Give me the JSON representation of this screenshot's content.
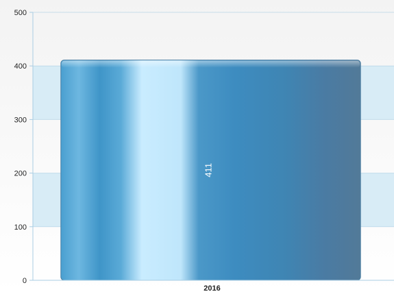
{
  "chart_data": {
    "type": "bar",
    "title": "",
    "xlabel": "",
    "ylabel": "",
    "categories": [
      "2016"
    ],
    "series": [
      {
        "values": [
          411
        ],
        "data_labels": [
          "411"
        ]
      }
    ],
    "ylim": [
      0,
      500
    ],
    "yticks": [
      0,
      100,
      200,
      300,
      400,
      500
    ],
    "grid": true,
    "alternating_bands": true,
    "legend": "none",
    "colors": {
      "bar_dark": "#2f7db5",
      "bar_light": "#c8ecff",
      "bar_edge": "#4a7ea2",
      "band": "#d8ecf6",
      "axis": "#a9cde3"
    }
  }
}
